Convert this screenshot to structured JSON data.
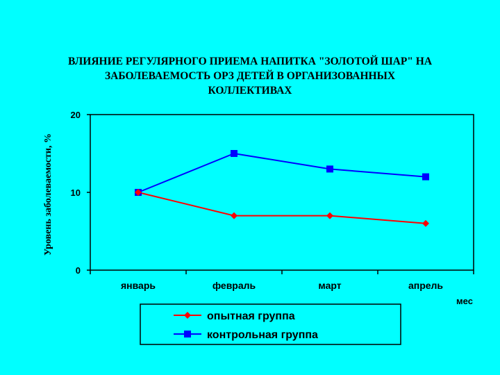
{
  "chart_data": {
    "type": "line",
    "title_lines": [
      "ВЛИЯНИЕ РЕГУЛЯРНОГО ПРИЕМА НАПИТКА \"ЗОЛОТОЙ ШАР\" НА",
      "ЗАБОЛЕВАЕМОСТЬ ОРЗ ДЕТЕЙ В ОРГАНИЗОВАННЫХ",
      "КОЛЛЕКТИВАХ"
    ],
    "ylabel": "Уровень заболеваемости, %",
    "xlabel": "мес",
    "categories": [
      "январь",
      "февраль",
      "март",
      "апрель"
    ],
    "ylim": [
      0,
      20
    ],
    "yticks": [
      0,
      10,
      20
    ],
    "grid": false,
    "legend_position": "bottom",
    "series": [
      {
        "name": "опытная группа",
        "values": [
          10,
          7,
          7,
          6
        ],
        "color": "#ff0000",
        "marker": "diamond"
      },
      {
        "name": "контрольная группа",
        "values": [
          10,
          15,
          13,
          12
        ],
        "color": "#0000ff",
        "marker": "square"
      }
    ]
  }
}
